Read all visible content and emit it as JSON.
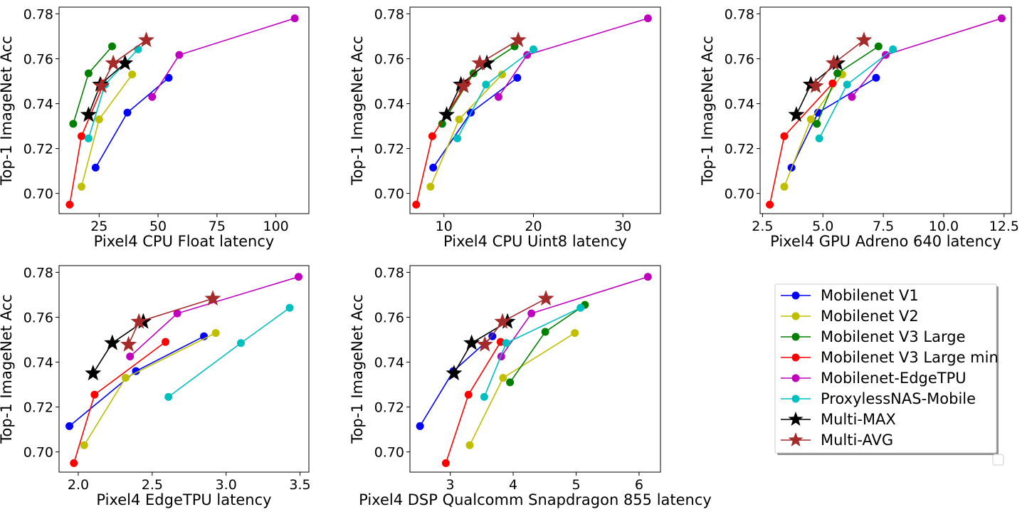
{
  "figure_ylabel": "Top-1 ImageNet Acc",
  "series_meta": [
    {
      "name": "Mobilenet V1",
      "color": "#0000ff",
      "marker": "circle"
    },
    {
      "name": "Mobilenet V2",
      "color": "#bfbf00",
      "marker": "circle"
    },
    {
      "name": "Mobilenet V3 Large",
      "color": "#008000",
      "marker": "circle"
    },
    {
      "name": "Mobilenet V3 Large min",
      "color": "#ff0000",
      "marker": "circle"
    },
    {
      "name": "Mobilenet-EdgeTPU",
      "color": "#bf00bf",
      "marker": "circle"
    },
    {
      "name": "ProxylessNAS-Mobile",
      "color": "#00bfbf",
      "marker": "circle"
    },
    {
      "name": "Multi-MAX",
      "color": "#000000",
      "marker": "star"
    },
    {
      "name": "Multi-AVG",
      "color": "#a52a2a",
      "marker": "star"
    }
  ],
  "chart_data": [
    {
      "type": "line",
      "xlabel": "Pixel4 CPU Float latency",
      "ylabel": "Top-1 ImageNet Acc",
      "xlim": [
        8,
        114
      ],
      "ylim": [
        0.691,
        0.783
      ],
      "xticks": [
        "25",
        "50",
        "75",
        "100"
      ],
      "xtick_values": [
        25,
        50,
        75,
        100
      ],
      "yticks": [
        "0.70",
        "0.72",
        "0.74",
        "0.76",
        "0.78"
      ],
      "ytick_values": [
        0.7,
        0.72,
        0.74,
        0.76,
        0.78
      ],
      "series": [
        {
          "name": "Mobilenet V1",
          "x": [
            23.5,
            37,
            54.5
          ],
          "y": [
            0.7115,
            0.736,
            0.7515
          ]
        },
        {
          "name": "Mobilenet V2",
          "x": [
            17.5,
            25,
            39
          ],
          "y": [
            0.703,
            0.733,
            0.753
          ]
        },
        {
          "name": "Mobilenet V3 Large",
          "x": [
            14,
            20.5,
            30.5
          ],
          "y": [
            0.731,
            0.7535,
            0.7655
          ]
        },
        {
          "name": "Mobilenet V3 Large min",
          "x": [
            12.5,
            17.5,
            27
          ],
          "y": [
            0.695,
            0.7255,
            0.749
          ]
        },
        {
          "name": "Mobilenet-EdgeTPU",
          "x": [
            47.5,
            59,
            108
          ],
          "y": [
            0.743,
            0.7617,
            0.778
          ]
        },
        {
          "name": "ProxylessNAS-Mobile",
          "x": [
            20.5,
            27.5,
            41.5
          ],
          "y": [
            0.7245,
            0.7485,
            0.7642
          ]
        },
        {
          "name": "Multi-MAX",
          "x": [
            20.5,
            25.5,
            36
          ],
          "y": [
            0.735,
            0.7485,
            0.758
          ]
        },
        {
          "name": "Multi-AVG",
          "x": [
            26,
            31,
            45
          ],
          "y": [
            0.7478,
            0.758,
            0.7683
          ]
        }
      ]
    },
    {
      "type": "line",
      "xlabel": "Pixel4 CPU Uint8 latency",
      "ylabel": "Top-1 ImageNet Acc",
      "xlim": [
        6.2,
        34.2
      ],
      "ylim": [
        0.691,
        0.783
      ],
      "xticks": [
        "10",
        "20",
        "30"
      ],
      "xtick_values": [
        10,
        20,
        30
      ],
      "yticks": [
        "0.70",
        "0.72",
        "0.74",
        "0.76",
        "0.78"
      ],
      "ytick_values": [
        0.7,
        0.72,
        0.74,
        0.76,
        0.78
      ],
      "series": [
        {
          "name": "Mobilenet V1",
          "x": [
            8.8,
            13,
            18.2
          ],
          "y": [
            0.7115,
            0.736,
            0.7515
          ]
        },
        {
          "name": "Mobilenet V2",
          "x": [
            8.5,
            11.7,
            16.5
          ],
          "y": [
            0.703,
            0.733,
            0.753
          ]
        },
        {
          "name": "Mobilenet V3 Large",
          "x": [
            9.8,
            13.3,
            17.9
          ],
          "y": [
            0.731,
            0.7535,
            0.7655
          ]
        },
        {
          "name": "Mobilenet V3 Large min",
          "x": [
            6.9,
            8.7,
            12.5
          ],
          "y": [
            0.695,
            0.7255,
            0.749
          ]
        },
        {
          "name": "Mobilenet-EdgeTPU",
          "x": [
            16.1,
            19.3,
            32.8
          ],
          "y": [
            0.743,
            0.7617,
            0.778
          ]
        },
        {
          "name": "ProxylessNAS-Mobile",
          "x": [
            11.5,
            14.7,
            20
          ],
          "y": [
            0.7245,
            0.7485,
            0.7642
          ]
        },
        {
          "name": "Multi-MAX",
          "x": [
            10.3,
            11.9,
            14.8
          ],
          "y": [
            0.735,
            0.7485,
            0.758
          ]
        },
        {
          "name": "Multi-AVG",
          "x": [
            12.2,
            14,
            18.3
          ],
          "y": [
            0.7478,
            0.758,
            0.7683
          ]
        }
      ]
    },
    {
      "type": "line",
      "xlabel": "Pixel4 GPU Adreno 640 latency",
      "ylabel": "Top-1 ImageNet Acc",
      "xlim": [
        2.4,
        12.8
      ],
      "ylim": [
        0.691,
        0.783
      ],
      "xticks": [
        "2.5",
        "5.0",
        "7.5",
        "10.0",
        "12.5"
      ],
      "xtick_values": [
        2.5,
        5.0,
        7.5,
        10.0,
        12.5
      ],
      "yticks": [
        "0.70",
        "0.72",
        "0.74",
        "0.76",
        "0.78"
      ],
      "ytick_values": [
        0.7,
        0.72,
        0.74,
        0.76,
        0.78
      ],
      "series": [
        {
          "name": "Mobilenet V1",
          "x": [
            3.7,
            4.8,
            7.2
          ],
          "y": [
            0.7115,
            0.736,
            0.7515
          ]
        },
        {
          "name": "Mobilenet V2",
          "x": [
            3.4,
            4.5,
            5.8
          ],
          "y": [
            0.703,
            0.733,
            0.753
          ]
        },
        {
          "name": "Mobilenet V3 Large",
          "x": [
            4.75,
            5.6,
            7.3
          ],
          "y": [
            0.731,
            0.7535,
            0.7655
          ]
        },
        {
          "name": "Mobilenet V3 Large min",
          "x": [
            2.8,
            3.4,
            5.4
          ],
          "y": [
            0.695,
            0.7255,
            0.749
          ]
        },
        {
          "name": "Mobilenet-EdgeTPU",
          "x": [
            6.2,
            7.6,
            12.4
          ],
          "y": [
            0.743,
            0.7617,
            0.778
          ]
        },
        {
          "name": "ProxylessNAS-Mobile",
          "x": [
            4.85,
            6.0,
            7.9
          ],
          "y": [
            0.7245,
            0.7485,
            0.7642
          ]
        },
        {
          "name": "Multi-MAX",
          "x": [
            3.9,
            4.5,
            5.6
          ],
          "y": [
            0.735,
            0.7485,
            0.758
          ]
        },
        {
          "name": "Multi-AVG",
          "x": [
            4.7,
            5.45,
            6.7
          ],
          "y": [
            0.7478,
            0.758,
            0.7683
          ]
        }
      ]
    },
    {
      "type": "line",
      "xlabel": "Pixel4 EdgeTPU latency",
      "ylabel": "Top-1 ImageNet Acc",
      "xlim": [
        1.87,
        3.56
      ],
      "ylim": [
        0.691,
        0.783
      ],
      "xticks": [
        "2.0",
        "2.5",
        "3.0",
        "3.5"
      ],
      "xtick_values": [
        2.0,
        2.5,
        3.0,
        3.5
      ],
      "yticks": [
        "0.70",
        "0.72",
        "0.74",
        "0.76",
        "0.78"
      ],
      "ytick_values": [
        0.7,
        0.72,
        0.74,
        0.76,
        0.78
      ],
      "series": [
        {
          "name": "Mobilenet V1",
          "x": [
            1.94,
            2.39,
            2.85
          ],
          "y": [
            0.7115,
            0.736,
            0.7515
          ]
        },
        {
          "name": "Mobilenet V2",
          "x": [
            2.04,
            2.32,
            2.93
          ],
          "y": [
            0.703,
            0.733,
            0.753
          ]
        },
        {
          "name": "Mobilenet V3 Large min",
          "x": [
            1.97,
            2.11,
            2.59
          ],
          "y": [
            0.695,
            0.7255,
            0.749
          ]
        },
        {
          "name": "Mobilenet-EdgeTPU",
          "x": [
            2.35,
            2.67,
            3.49
          ],
          "y": [
            0.7425,
            0.7617,
            0.778
          ]
        },
        {
          "name": "ProxylessNAS-Mobile",
          "x": [
            2.61,
            3.1,
            3.43
          ],
          "y": [
            0.7245,
            0.7485,
            0.7642
          ]
        },
        {
          "name": "Multi-MAX",
          "x": [
            2.1,
            2.23,
            2.44
          ],
          "y": [
            0.735,
            0.7485,
            0.758
          ]
        },
        {
          "name": "Multi-AVG",
          "x": [
            2.34,
            2.41,
            2.91
          ],
          "y": [
            0.7478,
            0.758,
            0.7683
          ]
        }
      ]
    },
    {
      "type": "line",
      "xlabel": "Pixel4 DSP Qualcomm Snapdragon 855 latency",
      "ylabel": "Top-1 ImageNet Acc",
      "xlim": [
        2.36,
        6.34
      ],
      "ylim": [
        0.691,
        0.783
      ],
      "xticks": [
        "3",
        "4",
        "5",
        "6"
      ],
      "xtick_values": [
        3,
        4,
        5,
        6
      ],
      "yticks": [
        "0.70",
        "0.72",
        "0.74",
        "0.76",
        "0.78"
      ],
      "ytick_values": [
        0.7,
        0.72,
        0.74,
        0.76,
        0.78
      ],
      "series": [
        {
          "name": "Mobilenet V1",
          "x": [
            2.52,
            3.05,
            3.67
          ],
          "y": [
            0.7115,
            0.736,
            0.7515
          ]
        },
        {
          "name": "Mobilenet V2",
          "x": [
            3.31,
            3.84,
            4.98
          ],
          "y": [
            0.703,
            0.733,
            0.753
          ]
        },
        {
          "name": "Mobilenet V3 Large",
          "x": [
            3.95,
            4.51,
            5.14
          ],
          "y": [
            0.731,
            0.7535,
            0.7655
          ]
        },
        {
          "name": "Mobilenet V3 Large min",
          "x": [
            2.93,
            3.29,
            3.8
          ],
          "y": [
            0.695,
            0.7255,
            0.749
          ]
        },
        {
          "name": "Mobilenet-EdgeTPU",
          "x": [
            3.81,
            4.29,
            6.14
          ],
          "y": [
            0.7425,
            0.7617,
            0.778
          ]
        },
        {
          "name": "ProxylessNAS-Mobile",
          "x": [
            3.54,
            3.89,
            5.07
          ],
          "y": [
            0.7245,
            0.7485,
            0.7642
          ]
        },
        {
          "name": "Multi-MAX",
          "x": [
            3.06,
            3.34,
            3.91
          ],
          "y": [
            0.735,
            0.7485,
            0.758
          ]
        },
        {
          "name": "Multi-AVG",
          "x": [
            3.55,
            3.83,
            4.52
          ],
          "y": [
            0.7478,
            0.758,
            0.7683
          ]
        }
      ]
    }
  ]
}
